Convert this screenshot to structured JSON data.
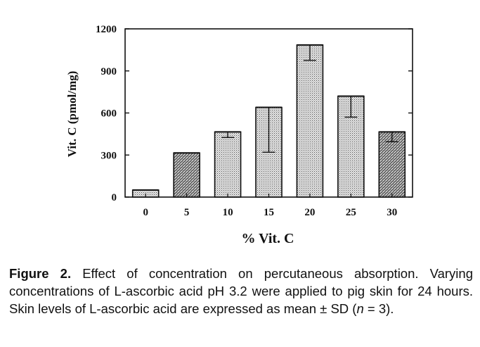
{
  "chart_data": {
    "type": "bar",
    "categories": [
      "0",
      "5",
      "10",
      "15",
      "20",
      "25",
      "30"
    ],
    "values": [
      50,
      315,
      465,
      640,
      1085,
      720,
      465
    ],
    "sd": [
      0,
      0,
      40,
      320,
      110,
      150,
      70
    ],
    "bar_patterns": [
      "dots",
      "hatch",
      "dots",
      "dots",
      "dots",
      "dots",
      "hatch"
    ],
    "ylabel": "Vit. C (pmol/mg)",
    "xlabel": "% Vit. C",
    "ylim": [
      0,
      1200
    ],
    "yticks": [
      "0",
      "300",
      "600",
      "900",
      "1200"
    ],
    "grid": false
  },
  "caption": {
    "label": "Figure 2.",
    "text_before_n": "Effect of concentration on percutaneous absorption. Varying concentrations of L-ascorbic acid pH 3.2 were applied to pig skin for 24 hours. Skin levels of L-ascorbic acid are expressed as mean ± SD (",
    "n_symbol": "n",
    "text_after_n": " = 3)."
  }
}
